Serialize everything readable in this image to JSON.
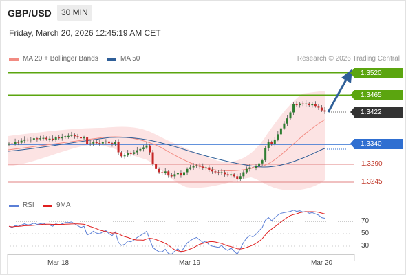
{
  "header": {
    "symbol": "GBP/USD",
    "timeframe": "30 MIN"
  },
  "datetime": "Friday, March 20, 2026 12:45:19 AM CET",
  "legend": {
    "bollinger": {
      "label": "MA 20 + Bollinger Bands",
      "color": "#f28b82"
    },
    "ma50": {
      "label": "MA 50",
      "color": "#2f5f98"
    },
    "credit": "Research © 2026 Trading Central"
  },
  "levels": {
    "r2": {
      "value": "1.3520",
      "color": "#5ba50f"
    },
    "r1": {
      "value": "1.3465",
      "color": "#5ba50f"
    },
    "last": {
      "value": "1.3422",
      "color": "#333333"
    },
    "pivot": {
      "value": "1.3340",
      "color": "#2f6fd1"
    },
    "s1": {
      "value": "1.3290",
      "color": "#e07070"
    },
    "s2": {
      "value": "1.3245",
      "color": "#e07070"
    }
  },
  "rsi_panel": {
    "rsi_label": "RSI",
    "rsi_color": "#5b7fd6",
    "ma_label": "9MA",
    "ma_color": "#e02020",
    "ticks": [
      "70",
      "50",
      "30"
    ]
  },
  "x_axis": [
    "Mar 18",
    "Mar 19",
    "Mar 20"
  ],
  "chart_data": {
    "type": "candlestick",
    "instrument": "GBP/USD",
    "timeframe": "30 MIN",
    "levels": [
      1.352,
      1.3465,
      1.3422,
      1.334,
      1.329,
      1.3245
    ],
    "last_price": 1.3422,
    "close_path": [
      1.3342,
      1.3341,
      1.3346,
      1.3344,
      1.3349,
      1.3352,
      1.335,
      1.3352,
      1.3355,
      1.3353,
      1.3355,
      1.3356,
      1.3353,
      1.3354,
      1.3352,
      1.3357,
      1.3355,
      1.3358,
      1.336,
      1.3361,
      1.3363,
      1.336,
      1.3358,
      1.3355,
      1.3357,
      1.334,
      1.3342,
      1.3346,
      1.3343,
      1.3342,
      1.3345,
      1.3347,
      1.3343,
      1.334,
      1.3345,
      1.332,
      1.331,
      1.3312,
      1.3318,
      1.3316,
      1.332,
      1.3325,
      1.3328,
      1.3332,
      1.3337,
      1.332,
      1.329,
      1.3278,
      1.327,
      1.3268,
      1.3272,
      1.3262,
      1.326,
      1.3265,
      1.3268,
      1.3262,
      1.327,
      1.3278,
      1.3282,
      1.3285,
      1.3287,
      1.3284,
      1.328,
      1.3282,
      1.3275,
      1.3272,
      1.327,
      1.3268,
      1.327,
      1.3265,
      1.3262,
      1.3265,
      1.326,
      1.3252,
      1.326,
      1.327,
      1.3278,
      1.3282,
      1.328,
      1.3285,
      1.3292,
      1.33,
      1.333,
      1.3345,
      1.334,
      1.3352,
      1.3365,
      1.338,
      1.3392,
      1.3405,
      1.342,
      1.344,
      1.3438,
      1.3442,
      1.344,
      1.3442,
      1.3438,
      1.344,
      1.3436,
      1.3432,
      1.3425,
      1.3422
    ],
    "rsi": [
      62,
      60,
      63,
      62,
      64,
      66,
      64,
      65,
      67,
      65,
      66,
      67,
      64,
      64,
      62,
      66,
      64,
      66,
      68,
      68,
      69,
      66,
      63,
      60,
      62,
      48,
      50,
      54,
      51,
      50,
      53,
      55,
      50,
      47,
      53,
      36,
      31,
      33,
      38,
      37,
      40,
      44,
      47,
      50,
      54,
      41,
      28,
      24,
      21,
      21,
      25,
      18,
      17,
      22,
      26,
      20,
      28,
      35,
      39,
      42,
      44,
      40,
      36,
      38,
      32,
      30,
      29,
      28,
      31,
      26,
      23,
      27,
      22,
      17,
      26,
      36,
      43,
      47,
      45,
      49,
      55,
      60,
      72,
      76,
      71,
      76,
      80,
      83,
      84,
      85,
      86,
      88,
      86,
      87,
      85,
      86,
      83,
      84,
      82,
      80,
      76,
      75
    ]
  }
}
